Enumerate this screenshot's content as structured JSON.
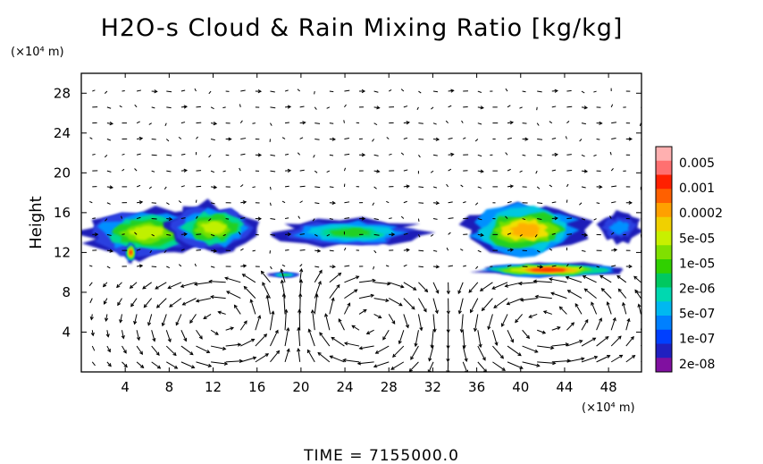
{
  "chart_data": {
    "type": "heatmap",
    "title": "H2O-s Cloud & Rain Mixing Ratio [kg/kg]",
    "xlabel": "",
    "ylabel": "Height",
    "x_unit": "(×10⁴ m)",
    "y_unit": "(×10⁴ m)",
    "xlim": [
      0,
      51
    ],
    "ylim": [
      0,
      30
    ],
    "x_ticks": [
      4,
      8,
      12,
      16,
      20,
      24,
      28,
      32,
      36,
      40,
      44,
      48
    ],
    "y_ticks": [
      4,
      8,
      12,
      16,
      20,
      24,
      28
    ],
    "footer": "TIME = 7155000.0",
    "colorbar": {
      "labels": [
        "0.005",
        "0.001",
        "0.0002",
        "5e-05",
        "1e-05",
        "2e-06",
        "5e-07",
        "1e-07",
        "2e-08"
      ],
      "colors": [
        "#ffb0b0",
        "#ff7070",
        "#ff2000",
        "#ff6000",
        "#ffa000",
        "#f0d000",
        "#c8f000",
        "#80e000",
        "#30d000",
        "#00c860",
        "#00d8b0",
        "#00b8f0",
        "#0080ff",
        "#0040ff",
        "#2020c0",
        "#8010a0"
      ]
    },
    "cloud_regions": [
      {
        "x": [
          0,
          12
        ],
        "y": [
          11.5,
          16.5
        ],
        "max": "5e-05"
      },
      {
        "x": [
          4,
          5
        ],
        "y": [
          11,
          13
        ],
        "max": "0.001"
      },
      {
        "x": [
          8,
          16
        ],
        "y": [
          12,
          17
        ],
        "max": "5e-05"
      },
      {
        "x": [
          18,
          31
        ],
        "y": [
          12.5,
          15.5
        ],
        "max": "1e-05"
      },
      {
        "x": [
          17,
          20
        ],
        "y": [
          9.5,
          10
        ],
        "max": "1e-05"
      },
      {
        "x": [
          35,
          46
        ],
        "y": [
          11.5,
          17
        ],
        "max": "0.0002"
      },
      {
        "x": [
          36,
          49
        ],
        "y": [
          9.5,
          11
        ],
        "max": "0.001"
      },
      {
        "x": [
          47,
          51
        ],
        "y": [
          13,
          16
        ],
        "max": "5e-07"
      }
    ],
    "wind_field": {
      "type": "vector",
      "circulation_centers_x": [
        14,
        25,
        42
      ],
      "circulation_center_y": 5
    }
  }
}
